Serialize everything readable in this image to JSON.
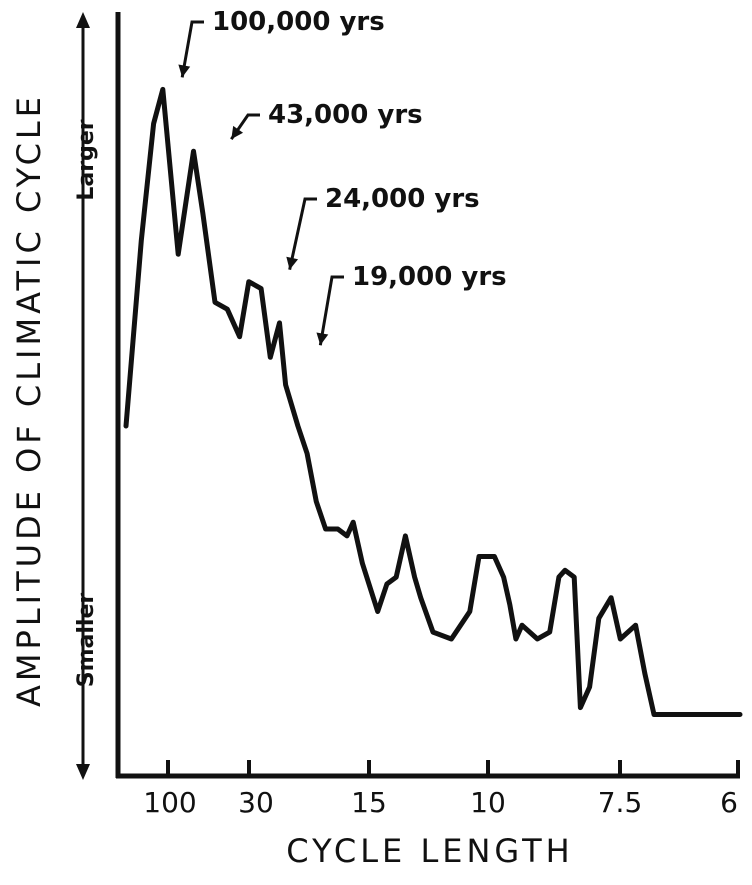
{
  "colors": {
    "ink": "#111111",
    "background": "#ffffff"
  },
  "chart_data": {
    "type": "line",
    "title": "",
    "xlabel": "CYCLE LENGTH",
    "ylabel": "AMPLITUDE OF CLIMATIC CYCLE",
    "y_side_labels": {
      "top": "Larger",
      "bottom": "Smaller"
    },
    "x_ticks": [
      "100",
      "30",
      "15",
      "10",
      "7.5",
      "6"
    ],
    "grid": false,
    "legend": "none",
    "ylim": [
      0,
      100
    ],
    "series": [
      {
        "x": [
          0.0,
          0.025,
          0.045,
          0.06,
          0.085,
          0.11,
          0.125,
          0.145,
          0.165,
          0.185,
          0.2,
          0.22,
          0.235,
          0.25,
          0.26,
          0.28,
          0.295,
          0.31,
          0.325,
          0.345,
          0.36,
          0.37,
          0.385,
          0.41,
          0.425,
          0.44,
          0.455,
          0.47,
          0.48,
          0.5,
          0.53,
          0.56,
          0.575,
          0.6,
          0.615,
          0.625,
          0.635,
          0.645,
          0.67,
          0.69,
          0.705,
          0.715,
          0.73,
          0.74,
          0.755,
          0.77,
          0.79,
          0.805,
          0.83,
          0.845,
          0.86,
          0.87,
          0.88,
          0.895,
          0.915,
          0.93,
          0.945,
          0.965,
          0.99,
          1.0
        ],
        "y": [
          46,
          73,
          90,
          95,
          71,
          86,
          77,
          64,
          63,
          59,
          67,
          66,
          56,
          61,
          52,
          46,
          42,
          35,
          31,
          31,
          30,
          32,
          26,
          19,
          23,
          24,
          30,
          24,
          21,
          16,
          15,
          19,
          27,
          27,
          24,
          20,
          15,
          17,
          15,
          16,
          24,
          25,
          24,
          5,
          8,
          18,
          21,
          15,
          17,
          10,
          4,
          4,
          4,
          4,
          4,
          4,
          4,
          4,
          4,
          4
        ]
      }
    ],
    "annotations": [
      {
        "text": "100,000 yrs",
        "x": 0.085,
        "y": 95
      },
      {
        "text": "43,000 yrs",
        "x": 0.165,
        "y": 86
      },
      {
        "text": "24,000 yrs",
        "x": 0.26,
        "y": 67
      },
      {
        "text": "19,000 yrs",
        "x": 0.31,
        "y": 56
      }
    ]
  }
}
